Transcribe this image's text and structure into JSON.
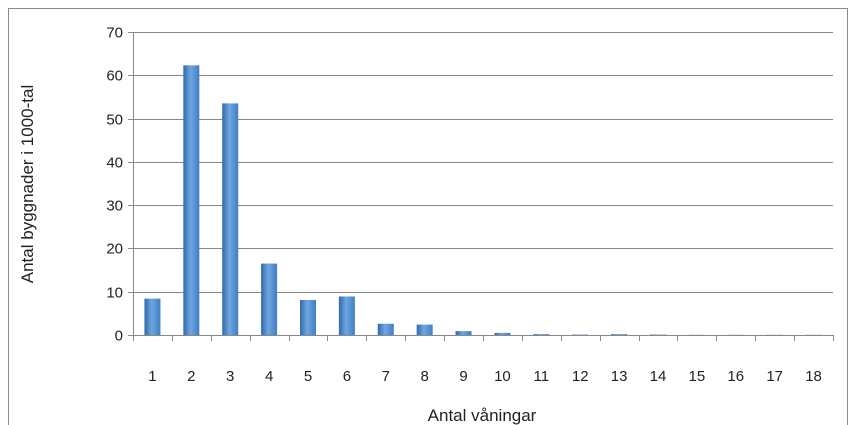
{
  "chart_data": {
    "type": "bar",
    "categories": [
      "1",
      "2",
      "3",
      "4",
      "5",
      "6",
      "7",
      "8",
      "9",
      "10",
      "11",
      "12",
      "13",
      "14",
      "15",
      "16",
      "17",
      "18"
    ],
    "values": [
      8.4,
      62.3,
      53.5,
      16.5,
      8.1,
      8.9,
      2.6,
      2.4,
      0.9,
      0.5,
      0.2,
      0.1,
      0.2,
      0.1,
      0.05,
      0.05,
      0.05,
      0.05
    ],
    "xlabel": "Antal våningar",
    "ylabel": "Antal byggnader i 1000-tal",
    "ylim": [
      0,
      70
    ],
    "yticks": [
      0,
      10,
      20,
      30,
      40,
      50,
      60,
      70
    ],
    "grid": true,
    "legend": "none",
    "bar_color": "#3f7fc4",
    "bar_color_light": "#6fa6e0",
    "bar_color_dark": "#2f6aa8",
    "grid_color": "#888888"
  }
}
